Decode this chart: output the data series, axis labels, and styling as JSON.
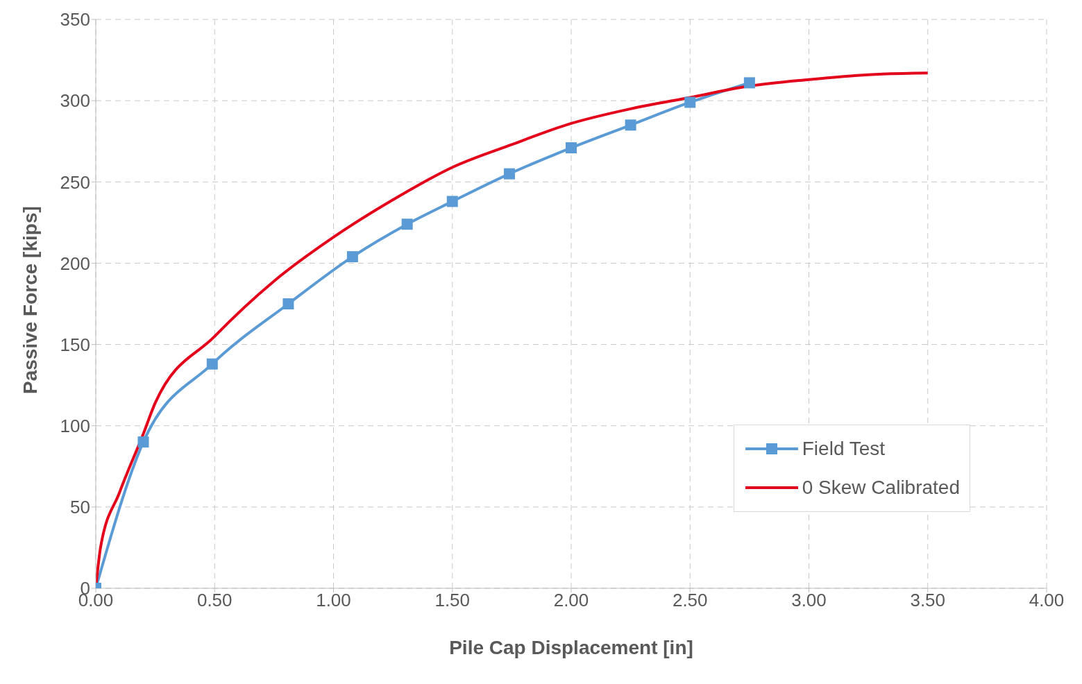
{
  "chart_data": {
    "type": "line",
    "xlabel": "Pile Cap Displacement [in]",
    "ylabel": "Passive Force [kips]",
    "xlim": [
      0,
      4
    ],
    "xticks": [
      {
        "value": 0,
        "label": "0.00"
      },
      {
        "value": 0.5,
        "label": "0.50"
      },
      {
        "value": 1,
        "label": "1.00"
      },
      {
        "value": 1.5,
        "label": "1.50"
      },
      {
        "value": 2,
        "label": "2.00"
      },
      {
        "value": 2.5,
        "label": "2.50"
      },
      {
        "value": 3,
        "label": "3.00"
      },
      {
        "value": 3.5,
        "label": "3.50"
      },
      {
        "value": 4,
        "label": "4.00"
      }
    ],
    "ylim": [
      0,
      350
    ],
    "yticks": [
      0,
      50,
      100,
      150,
      200,
      250,
      300,
      350
    ],
    "grid": true,
    "legend": "bottom right",
    "series": [
      {
        "name": "Field Test",
        "color": "#5b9bd5",
        "marker": "square",
        "x": [
          0,
          0.2,
          0.49,
          0.81,
          1.08,
          1.31,
          1.5,
          1.74,
          2,
          2.25,
          2.5,
          2.75
        ],
        "values": [
          0,
          90,
          138,
          175,
          204,
          224,
          238,
          255,
          271,
          285,
          299,
          311
        ]
      },
      {
        "name": "0 Skew Calibrated",
        "color": "#e3001b",
        "marker": "none",
        "x": [
          0,
          0.02,
          0.1,
          0.2,
          0.25,
          0.5,
          0.75,
          1,
          1.25,
          1.5,
          1.75,
          2,
          2.25,
          2.5,
          2.75,
          3,
          3.25,
          3.5
        ],
        "values": [
          0,
          25,
          59,
          95,
          114,
          155,
          189,
          216,
          239,
          259,
          273,
          286,
          295,
          302,
          309,
          313,
          316,
          317
        ]
      }
    ]
  }
}
